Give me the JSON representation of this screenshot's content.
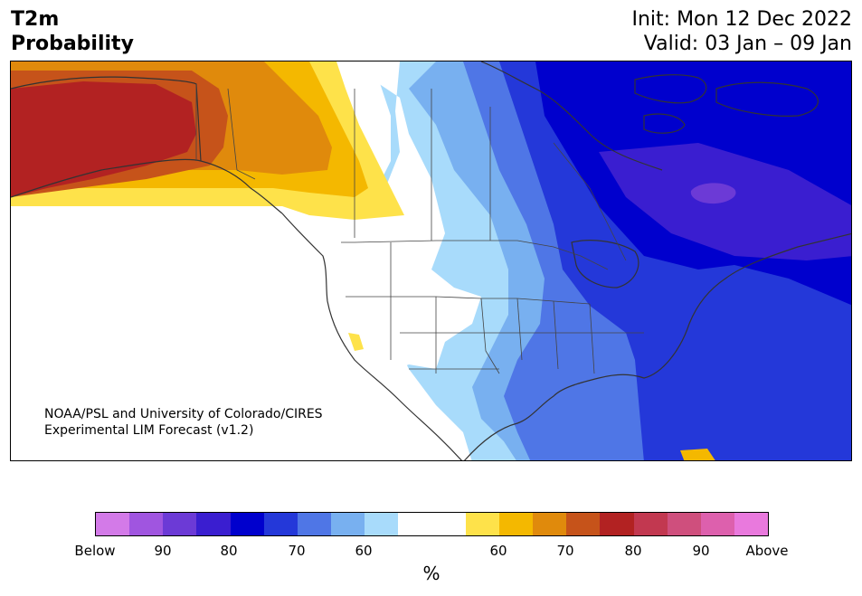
{
  "header": {
    "title_line1": "T2m",
    "title_line2": "Probability",
    "init": "Init: Mon 12 Dec 2022",
    "valid": "Valid: 03 Jan – 09 Jan"
  },
  "credit": {
    "line1": "NOAA/PSL and University of Colorado/CIRES",
    "line2": "Experimental LIM Forecast (v1.2)"
  },
  "colorbar": {
    "colors": [
      "#d37ae8",
      "#a055e0",
      "#6c3ad6",
      "#3a1ed0",
      "#0000cd",
      "#2438d9",
      "#4f76e6",
      "#78b0f0",
      "#a8dbfb",
      "#ffffff",
      "#ffffff",
      "#fee24a",
      "#f4b800",
      "#e08a0c",
      "#c6531a",
      "#b22222",
      "#c23850",
      "#cf4f7d",
      "#dd60ad",
      "#e979dd"
    ],
    "labels": [
      "Below",
      "90",
      "80",
      "70",
      "60",
      "60",
      "70",
      "80",
      "90",
      "Above"
    ],
    "unit": "%"
  },
  "map": {
    "category_colors": {
      "below_90": "#6c3ad6",
      "below_80": "#3a1ed0",
      "below_75": "#0000cd",
      "below_70": "#2438d9",
      "below_65": "#4f76e6",
      "below_60": "#78b0f0",
      "below_55": "#a8dbfb",
      "near_normal": "#ffffff",
      "above_55": "#fee24a",
      "above_60": "#f4b800",
      "above_65": "#e08a0c",
      "above_70": "#c6531a",
      "above_75": "#b22222"
    }
  }
}
